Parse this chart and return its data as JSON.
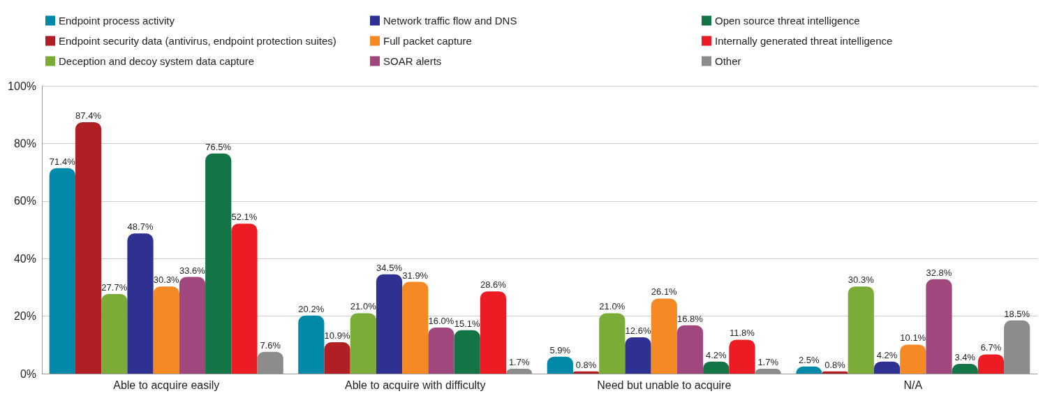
{
  "chart_data": {
    "type": "bar",
    "categories": [
      "Able to acquire easily",
      "Able to acquire with difficulty",
      "Need but unable to acquire",
      "N/A"
    ],
    "series": [
      {
        "name": "Endpoint process activity",
        "color": "#0089a8",
        "values": [
          71.4,
          20.2,
          5.9,
          2.5
        ],
        "value_labels": [
          "71.4%",
          "20.2%",
          "5.9%",
          "2.5%"
        ]
      },
      {
        "name": "Endpoint security data (antivirus, endpoint protection suites)",
        "color": "#b01f24",
        "values": [
          87.4,
          10.9,
          0.8,
          0.8
        ],
        "value_labels": [
          "87.4%",
          "10.9%",
          "0.8%",
          "0.8%"
        ]
      },
      {
        "name": "Deception and decoy system data capture",
        "color": "#7aac37",
        "values": [
          27.7,
          21.0,
          21.0,
          30.3
        ],
        "value_labels": [
          "27.7%",
          "21.0%",
          "21.0%",
          "30.3%"
        ]
      },
      {
        "name": "Network traffic flow and DNS",
        "color": "#2e3192",
        "values": [
          48.7,
          34.5,
          12.6,
          4.2
        ],
        "value_labels": [
          "48.7%",
          "34.5%",
          "12.6%",
          "4.2%"
        ]
      },
      {
        "name": "Full packet capture",
        "color": "#f58a24",
        "values": [
          30.3,
          31.9,
          26.1,
          10.1
        ],
        "value_labels": [
          "30.3%",
          "31.9%",
          "26.1%",
          "10.1%"
        ]
      },
      {
        "name": "SOAR alerts",
        "color": "#a0487e",
        "values": [
          33.6,
          16.0,
          16.8,
          32.8
        ],
        "value_labels": [
          "33.6%",
          "16.0%",
          "16.8%",
          "32.8%"
        ]
      },
      {
        "name": "Open source threat intelligence",
        "color": "#137446",
        "values": [
          76.5,
          15.1,
          4.2,
          3.4
        ],
        "value_labels": [
          "76.5%",
          "15.1%",
          "4.2%",
          "3.4%"
        ]
      },
      {
        "name": "Internally generated threat intelligence",
        "color": "#ed1c24",
        "values": [
          52.1,
          28.6,
          11.8,
          6.7
        ],
        "value_labels": [
          "52.1%",
          "28.6%",
          "11.8%",
          "6.7%"
        ]
      },
      {
        "name": "Other",
        "color": "#8c8c8c",
        "values": [
          7.6,
          1.7,
          1.7,
          18.5
        ],
        "value_labels": [
          "7.6%",
          "1.7%",
          "1.7%",
          "18.5%"
        ]
      }
    ],
    "ylim": [
      0,
      100
    ],
    "yticks": [
      {
        "value": 0,
        "label": "0%"
      },
      {
        "value": 20,
        "label": "20%"
      },
      {
        "value": 40,
        "label": "40%"
      },
      {
        "value": 60,
        "label": "60%"
      },
      {
        "value": 80,
        "label": "80%"
      },
      {
        "value": 100,
        "label": "100%"
      }
    ],
    "grid": "y",
    "legend": "top"
  }
}
